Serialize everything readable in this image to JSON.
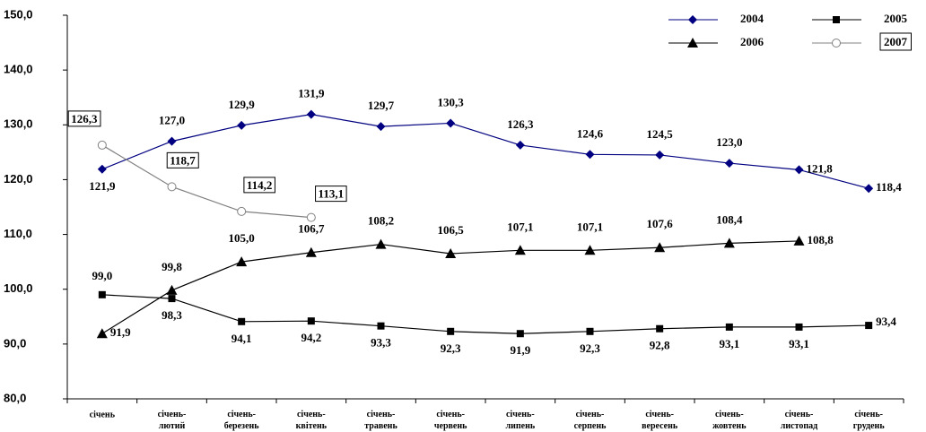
{
  "chart_data": {
    "type": "line",
    "categories": [
      "січень",
      "січень-лютий",
      "січень-березень",
      "січень-квітень",
      "січень-травень",
      "січень-червень",
      "січень-липень",
      "січень-серпень",
      "січень-вересень",
      "січень-жовтень",
      "січень-листопад",
      "січень-грудень"
    ],
    "ylim": [
      80,
      150
    ],
    "yticks": [
      {
        "value": 80,
        "label": "80,0"
      },
      {
        "value": 90,
        "label": "90,0"
      },
      {
        "value": 100,
        "label": "100,0"
      },
      {
        "value": 110,
        "label": "110,0"
      },
      {
        "value": 120,
        "label": "120,0"
      },
      {
        "value": 130,
        "label": "130,0"
      },
      {
        "value": 140,
        "label": "140,0"
      },
      {
        "value": 150,
        "label": "150,0"
      }
    ],
    "legend": "top-right",
    "series": [
      {
        "name": "2004",
        "color": "#000080",
        "marker": "diamond",
        "values": [
          121.9,
          127.0,
          129.9,
          131.9,
          129.7,
          130.3,
          126.3,
          124.6,
          124.5,
          123.0,
          121.8,
          118.4
        ],
        "value_labels": [
          "121,9",
          "127,0",
          "129,9",
          "131,9",
          "129,7",
          "130,3",
          "126,3",
          "124,6",
          "124,5",
          "123,0",
          "121,8",
          "118,4"
        ]
      },
      {
        "name": "2005",
        "color": "#000000",
        "marker": "square",
        "values": [
          99.0,
          98.3,
          94.1,
          94.2,
          93.3,
          92.3,
          91.9,
          92.3,
          92.8,
          93.1,
          93.1,
          93.4
        ],
        "value_labels": [
          "99,0",
          "98,3",
          "94,1",
          "94,2",
          "93,3",
          "92,3",
          "91,9",
          "92,3",
          "92,8",
          "93,1",
          "93,1",
          "93,4"
        ]
      },
      {
        "name": "2006",
        "color": "#000000",
        "marker": "triangle",
        "values": [
          91.9,
          99.8,
          105.0,
          106.7,
          108.2,
          106.5,
          107.1,
          107.1,
          107.6,
          108.4,
          108.8,
          null
        ],
        "value_labels": [
          "91,9",
          "99,8",
          "105,0",
          "106,7",
          "108,2",
          "106,5",
          "107,1",
          "107,1",
          "107,6",
          "108,4",
          "108,8",
          null
        ]
      },
      {
        "name": "2007",
        "color": "#808080",
        "marker": "circle",
        "values": [
          126.3,
          118.7,
          114.2,
          113.1,
          null,
          null,
          null,
          null,
          null,
          null,
          null,
          null
        ],
        "value_labels": [
          "126,3",
          "118,7",
          "114,2",
          "113,1",
          null,
          null,
          null,
          null,
          null,
          null,
          null,
          null
        ]
      }
    ]
  }
}
